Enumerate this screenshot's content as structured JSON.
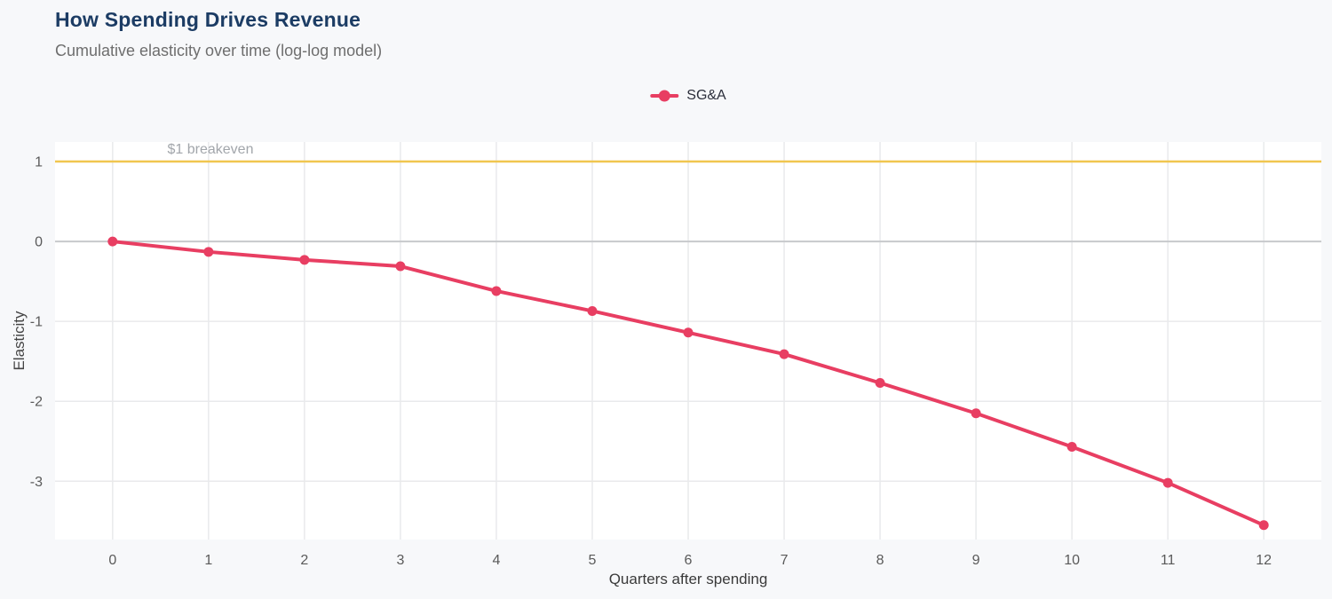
{
  "chart_data": {
    "type": "line",
    "title": "How Spending Drives Revenue",
    "subtitle": "Cumulative elasticity over time (log-log model)",
    "xlabel": "Quarters after spending",
    "ylabel": "Elasticity",
    "x": [
      0,
      1,
      2,
      3,
      4,
      5,
      6,
      7,
      8,
      9,
      10,
      11,
      12
    ],
    "series": [
      {
        "name": "SG&A",
        "color": "#e83e62",
        "values": [
          0,
          -0.13,
          -0.23,
          -0.31,
          -0.62,
          -0.87,
          -1.14,
          -1.41,
          -1.77,
          -2.15,
          -2.57,
          -3.02,
          -3.55
        ]
      }
    ],
    "xticks": [
      0,
      1,
      2,
      3,
      4,
      5,
      6,
      7,
      8,
      9,
      10,
      11,
      12
    ],
    "yticks": [
      1,
      0,
      -1,
      -2,
      -3
    ],
    "xlim": [
      -0.6,
      12.6
    ],
    "ylim": [
      -3.73,
      1.245
    ],
    "grid": true,
    "legend_position": "top-center",
    "reference_line": {
      "y": 1,
      "label": "$1 breakeven",
      "color": "#f0c64f",
      "label_color": "#a2a6ab"
    },
    "colors": {
      "background": "#f7f8fa",
      "plot_background": "#ffffff",
      "title": "#1c3c64",
      "subtitle": "#6e6e6e",
      "gridline": "#e9eaec",
      "zero_line": "#c7c9cc",
      "tick_label": "#5a5a5a",
      "axis_title": "#3a3a3a",
      "series_line": "#e83e62",
      "breakeven_line": "#f0c64f",
      "annotation": "#a2a6ab"
    }
  }
}
